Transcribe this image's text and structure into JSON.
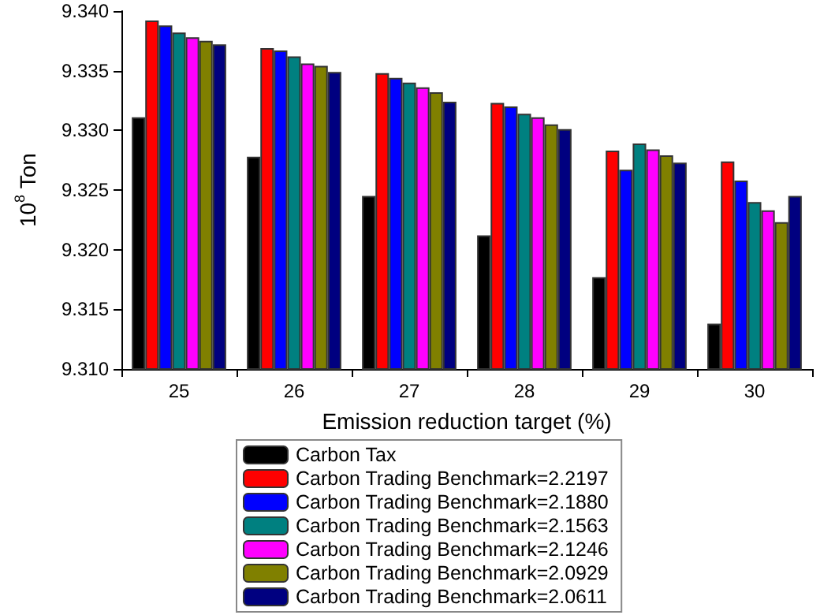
{
  "chart_data": {
    "type": "bar",
    "xlabel": "Emission reduction target (%)",
    "ylabel": "10$^{8}$ Ton",
    "categories": [
      "25",
      "26",
      "27",
      "28",
      "29",
      "30"
    ],
    "ylim": [
      9.31,
      9.34
    ],
    "yticks": [
      {
        "value": 9.31,
        "label": "9.310"
      },
      {
        "value": 9.315,
        "label": "9.315"
      },
      {
        "value": 9.32,
        "label": "9.320"
      },
      {
        "value": 9.325,
        "label": "9.325"
      },
      {
        "value": 9.33,
        "label": "9.330"
      },
      {
        "value": 9.335,
        "label": "9.335"
      },
      {
        "value": 9.34,
        "label": "9.340"
      }
    ],
    "grid": false,
    "legend": "bottom",
    "series": [
      {
        "name": "Carbon Tax",
        "color": "#000000",
        "values": [
          9.3311,
          9.3278,
          9.3245,
          9.3212,
          9.3177,
          9.3138
        ]
      },
      {
        "name": "Carbon Trading Benchmark=2.2197",
        "color": "#ff0000",
        "values": [
          9.3392,
          9.3369,
          9.3348,
          9.3323,
          9.3283,
          9.3274
        ]
      },
      {
        "name": "Carbon Trading Benchmark=2.1880",
        "color": "#0000ff",
        "values": [
          9.3388,
          9.3367,
          9.3344,
          9.332,
          9.3267,
          9.3258
        ]
      },
      {
        "name": "Carbon Trading Benchmark=2.1563",
        "color": "#008080",
        "values": [
          9.3382,
          9.3362,
          9.334,
          9.3314,
          9.3289,
          9.324
        ]
      },
      {
        "name": "Carbon Trading Benchmark=2.1246",
        "color": "#ff00ff",
        "values": [
          9.3378,
          9.3356,
          9.3336,
          9.3311,
          9.3284,
          9.3233
        ]
      },
      {
        "name": "Carbon Trading Benchmark=2.0929",
        "color": "#808000",
        "values": [
          9.3375,
          9.3354,
          9.3332,
          9.3305,
          9.3279,
          9.3223
        ]
      },
      {
        "name": "Carbon Trading Benchmark=2.0611",
        "color": "#000080",
        "values": [
          9.3372,
          9.3349,
          9.3324,
          9.3301,
          9.3273,
          9.3245
        ]
      }
    ]
  }
}
